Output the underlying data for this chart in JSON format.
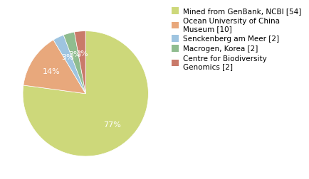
{
  "labels": [
    "Mined from GenBank, NCBI [54]",
    "Ocean University of China\nMuseum [10]",
    "Senckenberg am Meer [2]",
    "Macrogen, Korea [2]",
    "Centre for Biodiversity\nGenomics [2]"
  ],
  "values": [
    54,
    10,
    2,
    2,
    2
  ],
  "colors": [
    "#cdd87a",
    "#e8a87c",
    "#9ec4e0",
    "#8fbc8f",
    "#c97a6a"
  ],
  "startangle": 90,
  "background_color": "#ffffff",
  "text_color": "#ffffff",
  "fontsize": 8,
  "legend_fontsize": 7.5
}
